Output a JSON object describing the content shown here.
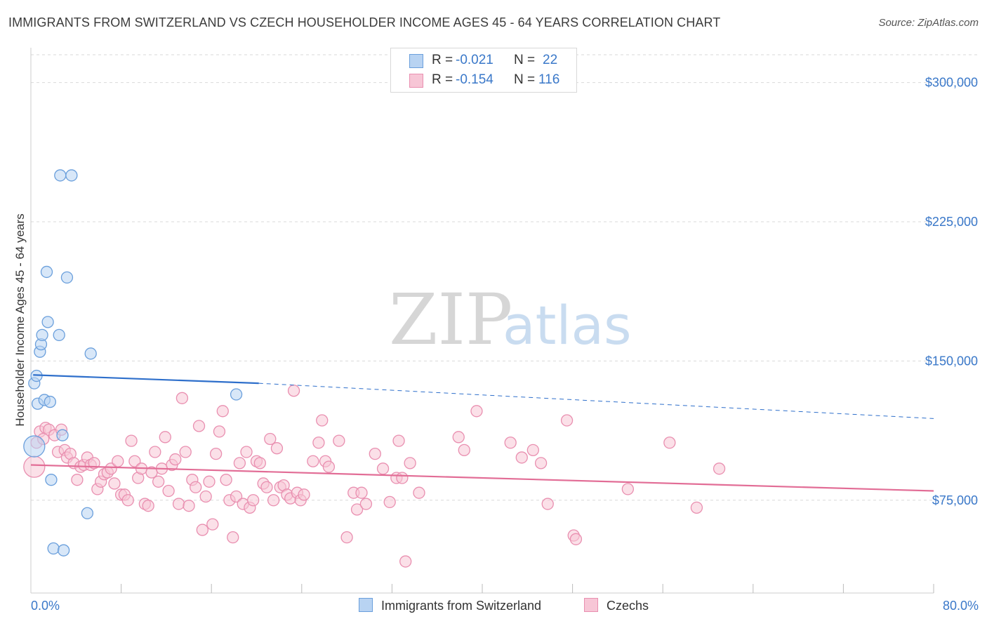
{
  "header": {
    "title": "IMMIGRANTS FROM SWITZERLAND VS CZECH HOUSEHOLDER INCOME AGES 45 - 64 YEARS CORRELATION CHART",
    "source": "Source: ZipAtlas.com"
  },
  "legend": {
    "rows": [
      {
        "r_label": "R =",
        "r_value": "-0.021",
        "n_label": "N =",
        "n_value": "22"
      },
      {
        "r_label": "R =",
        "r_value": "-0.154",
        "n_label": "N =",
        "n_value": "116"
      }
    ]
  },
  "bottom_legend": {
    "series_a": "Immigrants from Switzerland",
    "series_b": "Czechs"
  },
  "watermark": {
    "zip": "ZIP",
    "atlas": "atlas"
  },
  "colors": {
    "blue_fill": "#b8d3f2",
    "blue_stroke": "#6a9fdc",
    "blue_line": "#2e6fcb",
    "pink_fill": "#f7c6d6",
    "pink_stroke": "#e98fb0",
    "pink_line": "#e26d96",
    "tick_text": "#3a78c9",
    "grid": "#d9d9d9"
  },
  "chart_data": {
    "type": "scatter",
    "title": "IMMIGRANTS FROM SWITZERLAND VS CZECH HOUSEHOLDER INCOME AGES 45 - 64 YEARS CORRELATION CHART",
    "xlabel": "",
    "ylabel": "Householder Income Ages 45 - 64 years",
    "xlim": [
      0,
      80
    ],
    "ylim": [
      25000,
      315000
    ],
    "x_tick_labels": [
      "0.0%",
      "80.0%"
    ],
    "y_ticks": [
      75000,
      150000,
      225000,
      300000
    ],
    "y_tick_labels": [
      "$75,000",
      "$150,000",
      "$225,000",
      "$300,000"
    ],
    "grid": true,
    "series": [
      {
        "name": "Immigrants from Switzerland",
        "r": -0.021,
        "n": 22,
        "trend": {
          "x0": 0.2,
          "y0": 142500,
          "x_solid_end": 20.2,
          "y_solid_end": 138000,
          "x1": 80,
          "y1": 119000
        },
        "points": [
          [
            0.3,
            104000,
            "big"
          ],
          [
            0.3,
            138000
          ],
          [
            0.5,
            142000
          ],
          [
            0.6,
            127000
          ],
          [
            0.8,
            155000
          ],
          [
            0.9,
            159000
          ],
          [
            1.0,
            164000
          ],
          [
            1.2,
            129000
          ],
          [
            1.4,
            198000
          ],
          [
            1.5,
            171000
          ],
          [
            1.7,
            128000
          ],
          [
            1.8,
            86000
          ],
          [
            2.0,
            49000
          ],
          [
            2.5,
            164000
          ],
          [
            2.6,
            250000
          ],
          [
            2.9,
            48000
          ],
          [
            2.8,
            110000
          ],
          [
            3.2,
            195000
          ],
          [
            3.6,
            250000
          ],
          [
            5.3,
            154000
          ],
          [
            5.0,
            68000
          ],
          [
            18.2,
            132000
          ]
        ]
      },
      {
        "name": "Czechs",
        "r": -0.154,
        "n": 116,
        "trend": {
          "x0": 0,
          "y0": 94000,
          "x1": 80,
          "y1": 80000
        },
        "points": [
          [
            0.3,
            93000,
            "big"
          ],
          [
            0.5,
            106000
          ],
          [
            0.8,
            112000
          ],
          [
            1.1,
            108000
          ],
          [
            1.3,
            114000
          ],
          [
            1.6,
            113000
          ],
          [
            2.1,
            110000
          ],
          [
            2.4,
            101000
          ],
          [
            2.7,
            113000
          ],
          [
            3.0,
            102000
          ],
          [
            3.2,
            98000
          ],
          [
            3.5,
            100000
          ],
          [
            3.8,
            95000
          ],
          [
            4.1,
            86000
          ],
          [
            4.4,
            93000
          ],
          [
            4.7,
            94000
          ],
          [
            5.0,
            98000
          ],
          [
            5.3,
            94000
          ],
          [
            5.6,
            95000
          ],
          [
            5.9,
            81000
          ],
          [
            6.2,
            85000
          ],
          [
            6.5,
            89000
          ],
          [
            6.8,
            90000
          ],
          [
            7.1,
            92000
          ],
          [
            7.4,
            84000
          ],
          [
            7.7,
            96000
          ],
          [
            8.0,
            78000
          ],
          [
            8.3,
            78000
          ],
          [
            8.6,
            75000
          ],
          [
            8.9,
            107000
          ],
          [
            9.2,
            96000
          ],
          [
            9.5,
            87000
          ],
          [
            9.8,
            92000
          ],
          [
            10.1,
            73000
          ],
          [
            10.4,
            72000
          ],
          [
            10.7,
            90000
          ],
          [
            11.0,
            101000
          ],
          [
            11.3,
            85000
          ],
          [
            11.6,
            92000
          ],
          [
            11.9,
            109000
          ],
          [
            12.2,
            80000
          ],
          [
            12.5,
            94000
          ],
          [
            12.8,
            97000
          ],
          [
            13.1,
            73000
          ],
          [
            13.4,
            130000
          ],
          [
            13.7,
            101000
          ],
          [
            14.0,
            72000
          ],
          [
            14.3,
            86000
          ],
          [
            14.6,
            82000
          ],
          [
            14.9,
            115000
          ],
          [
            15.2,
            59000
          ],
          [
            15.5,
            77000
          ],
          [
            15.8,
            85000
          ],
          [
            16.1,
            62000
          ],
          [
            16.4,
            100000
          ],
          [
            16.7,
            112000
          ],
          [
            17.0,
            123000
          ],
          [
            17.3,
            86000
          ],
          [
            17.6,
            75000
          ],
          [
            17.9,
            55000
          ],
          [
            18.2,
            77000
          ],
          [
            18.5,
            95000
          ],
          [
            18.8,
            73000
          ],
          [
            19.1,
            101000
          ],
          [
            19.4,
            71000
          ],
          [
            19.7,
            75000
          ],
          [
            20.0,
            96000
          ],
          [
            20.3,
            95000
          ],
          [
            20.6,
            84000
          ],
          [
            20.9,
            82000
          ],
          [
            21.2,
            108000
          ],
          [
            21.5,
            75000
          ],
          [
            21.8,
            103000
          ],
          [
            22.1,
            82000
          ],
          [
            22.4,
            83000
          ],
          [
            22.7,
            78000
          ],
          [
            23.0,
            76000
          ],
          [
            23.3,
            134000
          ],
          [
            23.6,
            79000
          ],
          [
            23.9,
            75000
          ],
          [
            24.2,
            78000
          ],
          [
            25.0,
            96000
          ],
          [
            25.5,
            106000
          ],
          [
            25.8,
            118000
          ],
          [
            26.1,
            96000
          ],
          [
            26.4,
            93000
          ],
          [
            27.3,
            107000
          ],
          [
            28.0,
            55000
          ],
          [
            28.6,
            79000
          ],
          [
            28.9,
            70000
          ],
          [
            29.3,
            79000
          ],
          [
            29.7,
            73000
          ],
          [
            30.5,
            100000
          ],
          [
            31.2,
            92000
          ],
          [
            31.8,
            74000
          ],
          [
            32.4,
            87000
          ],
          [
            32.6,
            107000
          ],
          [
            32.9,
            87000
          ],
          [
            33.2,
            42000
          ],
          [
            33.6,
            95000
          ],
          [
            34.4,
            79000
          ],
          [
            37.9,
            109000
          ],
          [
            38.4,
            102000
          ],
          [
            39.5,
            123000
          ],
          [
            42.5,
            106000
          ],
          [
            43.5,
            98000
          ],
          [
            44.5,
            102000
          ],
          [
            45.2,
            95000
          ],
          [
            45.8,
            73000
          ],
          [
            47.5,
            118000
          ],
          [
            48.1,
            56000
          ],
          [
            48.3,
            54000
          ],
          [
            52.9,
            81000
          ],
          [
            56.6,
            106000
          ],
          [
            59.0,
            71000
          ],
          [
            61.0,
            92000
          ]
        ]
      }
    ]
  }
}
